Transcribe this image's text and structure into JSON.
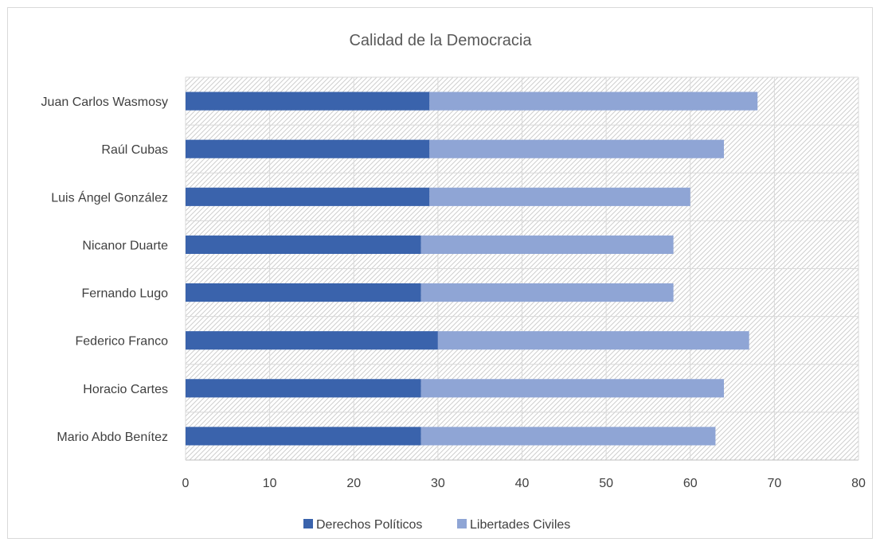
{
  "chart_data": {
    "type": "bar",
    "orientation": "horizontal",
    "stacked": true,
    "title": "Calidad de la Democracia",
    "categories": [
      "Juan Carlos Wasmosy",
      "Raúl Cubas",
      "Luis Ángel González",
      "Nicanor Duarte",
      "Fernando Lugo",
      "Federico Franco",
      "Horacio Cartes",
      "Mario Abdo Benítez"
    ],
    "series": [
      {
        "name": "Derechos Políticos",
        "color": "#3a63ac",
        "values": [
          29,
          29,
          29,
          28,
          28,
          30,
          28,
          28
        ]
      },
      {
        "name": "Libertades Civiles",
        "color": "#8fa5d5",
        "values": [
          39,
          35,
          31,
          30,
          30,
          37,
          36,
          35
        ]
      }
    ],
    "xlim": [
      0,
      80
    ],
    "xticks": [
      "0",
      "10",
      "20",
      "30",
      "40",
      "50",
      "60",
      "70",
      "80"
    ],
    "xlabel": "",
    "ylabel": "",
    "grid": true,
    "plot_background": "hatched",
    "legend_position": "bottom"
  }
}
